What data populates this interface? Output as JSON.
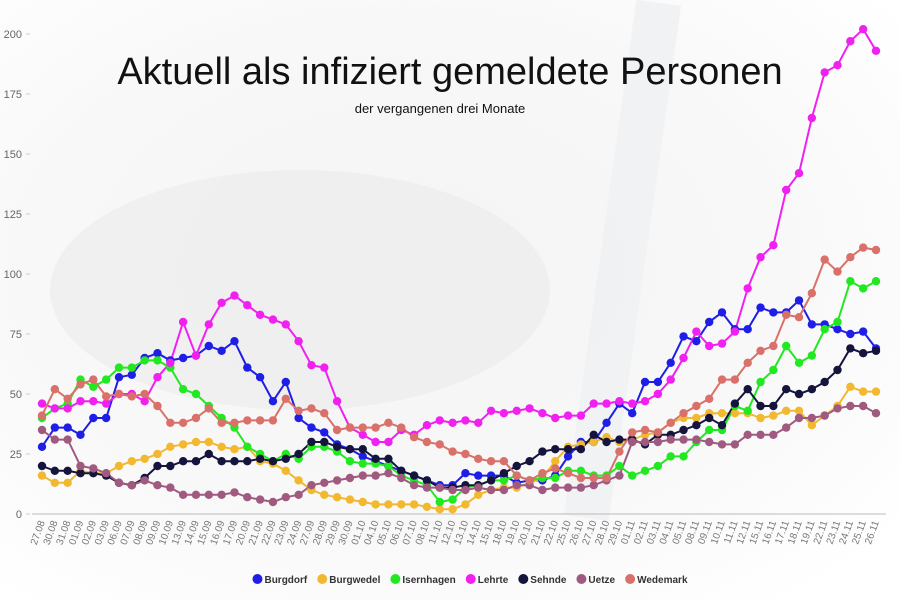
{
  "chart_data": {
    "type": "line",
    "title": "Aktuell als infiziert gemeldete Personen",
    "subtitle": "der vergangenen drei Monate",
    "categories": [
      "27.08",
      "30.08",
      "31.08",
      "01.09",
      "02.09",
      "03.09",
      "06.09",
      "07.09",
      "08.09",
      "09.09",
      "10.09",
      "13.09",
      "14.09",
      "15.09",
      "16.09",
      "17.09",
      "20.09",
      "21.09",
      "22.09",
      "23.09",
      "24.09",
      "27.09",
      "28.09",
      "29.09",
      "30.09",
      "01.10",
      "04.10",
      "05.10",
      "06.10",
      "07.10",
      "08.10",
      "11.10",
      "12.10",
      "13.10",
      "14.10",
      "15.10",
      "18.10",
      "19.10",
      "20.10",
      "21.10",
      "22.10",
      "25.10",
      "26.10",
      "27.10",
      "28.10",
      "29.10",
      "01.11",
      "02.11",
      "03.11",
      "04.11",
      "05.11",
      "08.11",
      "09.11",
      "10.11",
      "11.11",
      "12.11",
      "15.11",
      "16.11",
      "17.11",
      "18.11",
      "19.11",
      "22.11",
      "23.11",
      "24.11",
      "25.11",
      "26.11"
    ],
    "series": [
      {
        "name": "Burgdorf",
        "color": "#1e1ee6",
        "values": [
          28,
          36,
          36,
          33,
          40,
          40,
          57,
          58,
          65,
          67,
          64,
          65,
          66,
          70,
          68,
          72,
          61,
          57,
          47,
          55,
          40,
          36,
          34,
          29,
          27,
          24,
          22,
          20,
          18,
          16,
          14,
          12,
          12,
          17,
          16,
          16,
          16,
          13,
          14,
          14,
          16,
          24,
          30,
          30,
          38,
          46,
          42,
          55,
          55,
          63,
          74,
          72,
          80,
          84,
          77,
          77,
          86,
          84,
          84,
          89,
          79,
          79,
          77,
          75,
          76,
          69
        ]
      },
      {
        "name": "Burgwedel",
        "color": "#f2b830",
        "values": [
          16,
          13,
          13,
          18,
          17,
          17,
          20,
          22,
          23,
          25,
          28,
          29,
          30,
          30,
          28,
          27,
          28,
          22,
          21,
          18,
          14,
          10,
          8,
          7,
          6,
          5,
          4,
          4,
          4,
          4,
          3,
          2,
          2,
          4,
          8,
          10,
          11,
          11,
          13,
          15,
          22,
          28,
          29,
          30,
          32,
          30,
          31,
          33,
          34,
          38,
          40,
          40,
          42,
          42,
          42,
          42,
          40,
          41,
          43,
          43,
          37,
          41,
          45,
          53,
          51,
          51
        ]
      },
      {
        "name": "Isernhagen",
        "color": "#22e822",
        "values": [
          40,
          44,
          46,
          56,
          53,
          56,
          61,
          61,
          64,
          64,
          61,
          52,
          50,
          45,
          40,
          36,
          28,
          25,
          22,
          25,
          23,
          28,
          28,
          26,
          22,
          21,
          21,
          20,
          16,
          14,
          12,
          5,
          6,
          11,
          12,
          14,
          14,
          16,
          14,
          15,
          15,
          18,
          18,
          16,
          16,
          20,
          16,
          18,
          20,
          24,
          24,
          30,
          35,
          35,
          45,
          43,
          55,
          60,
          70,
          63,
          66,
          77,
          80,
          97,
          94,
          97
        ]
      },
      {
        "name": "Lehrte",
        "color": "#f020f0",
        "values": [
          46,
          44,
          44,
          47,
          47,
          46,
          50,
          50,
          47,
          57,
          63,
          80,
          66,
          79,
          88,
          91,
          87,
          83,
          81,
          79,
          72,
          62,
          61,
          47,
          36,
          33,
          30,
          30,
          35,
          33,
          37,
          39,
          38,
          39,
          38,
          43,
          42,
          43,
          44,
          42,
          40,
          41,
          41,
          46,
          46,
          47,
          46,
          47,
          50,
          56,
          65,
          76,
          70,
          71,
          76,
          94,
          107,
          112,
          135,
          142,
          165,
          184,
          187,
          197,
          202,
          193
        ]
      },
      {
        "name": "Sehnde",
        "color": "#14143c",
        "values": [
          20,
          18,
          18,
          17,
          17,
          16,
          13,
          12,
          15,
          20,
          20,
          22,
          22,
          25,
          22,
          22,
          22,
          23,
          22,
          23,
          25,
          30,
          30,
          28,
          27,
          27,
          23,
          23,
          18,
          16,
          14,
          11,
          11,
          12,
          12,
          14,
          17,
          20,
          22,
          26,
          27,
          27,
          27,
          33,
          30,
          31,
          31,
          29,
          33,
          33,
          35,
          37,
          40,
          37,
          46,
          52,
          45,
          45,
          52,
          50,
          52,
          55,
          60,
          69,
          67,
          68
        ]
      },
      {
        "name": "Uetze",
        "color": "#a05a80",
        "values": [
          35,
          31,
          31,
          20,
          19,
          17,
          13,
          12,
          14,
          12,
          11,
          8,
          8,
          8,
          8,
          9,
          7,
          6,
          5,
          7,
          8,
          12,
          13,
          14,
          15,
          16,
          16,
          17,
          15,
          12,
          11,
          11,
          10,
          10,
          11,
          10,
          10,
          12,
          12,
          10,
          11,
          11,
          11,
          12,
          14,
          16,
          30,
          30,
          30,
          31,
          31,
          31,
          30,
          29,
          29,
          33,
          33,
          33,
          36,
          40,
          40,
          41,
          44,
          45,
          45,
          42
        ]
      },
      {
        "name": "Wedemark",
        "color": "#d9706a",
        "values": [
          41,
          52,
          48,
          54,
          56,
          49,
          50,
          49,
          50,
          45,
          38,
          38,
          40,
          44,
          38,
          38,
          39,
          39,
          39,
          48,
          43,
          44,
          42,
          35,
          36,
          36,
          36,
          38,
          36,
          32,
          30,
          29,
          26,
          25,
          23,
          22,
          22,
          16,
          14,
          17,
          19,
          17,
          15,
          15,
          15,
          26,
          34,
          35,
          34,
          38,
          42,
          45,
          48,
          56,
          56,
          63,
          68,
          70,
          83,
          82,
          92,
          106,
          101,
          107,
          111,
          110
        ]
      }
    ],
    "ylim": [
      0,
      200
    ],
    "yticks": [
      0,
      25,
      50,
      75,
      100,
      125,
      150,
      175,
      200
    ],
    "grid": false,
    "legend": "bottom"
  }
}
